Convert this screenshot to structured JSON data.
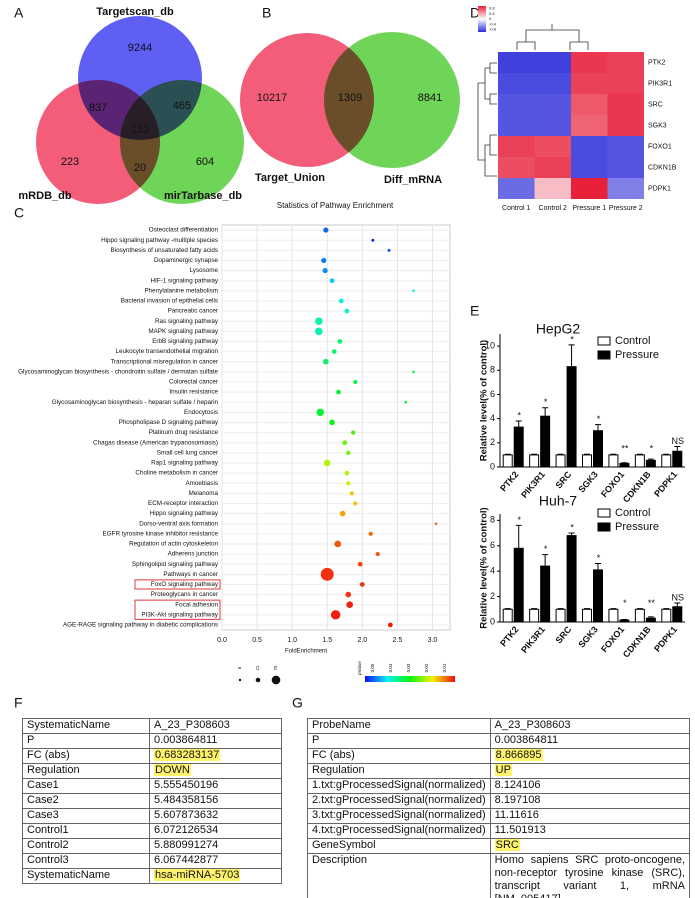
{
  "panel_labels": [
    "A",
    "B",
    "C",
    "D",
    "E",
    "F",
    "G"
  ],
  "chart_data": [
    {
      "type": "venn",
      "sets": [
        {
          "name": "Targetscan_db",
          "color": "#3c3cf2"
        },
        {
          "name": "mRDB_db",
          "color": "#f0395b"
        },
        {
          "name": "mirTarbase_db",
          "color": "#4fcc33"
        }
      ],
      "regions": [
        9244,
        837,
        465,
        133,
        223,
        20,
        604
      ]
    },
    {
      "type": "venn",
      "sets": [
        {
          "name": "Target_Union",
          "color": "#f0395b"
        },
        {
          "name": "Diff_mRNA",
          "color": "#4fcc33"
        }
      ],
      "regions": [
        10217,
        1309,
        8841
      ]
    },
    {
      "type": "dot",
      "title": "Statistics of Pathway Enrichment",
      "x_label": "FoldEnrichment",
      "categories": [
        "Osteoclast differentiation",
        "Hippo signaling pathway -multiple species",
        "Biosynthesis of unsaturated fatty acids",
        "Dopaminergic synapse",
        "Lysosome",
        "HIF-1 signaling pathway",
        "Phenylalanine metabolism",
        "Bacterial invasion of epithelial cells",
        "Pancreatic cancer",
        "Ras signaling pathway",
        "MAPK signaling pathway",
        "ErbB signaling pathway",
        "Leukocyte transendothelial migration",
        "Transcriptional misregulation in cancer",
        "Glycosaminoglycan biosynthesis - chondroitin sulfate / dermatan sulfate",
        "Colorectal cancer",
        "Insulin resistance",
        "Glycosaminoglycan biosynthesis - heparan sulfate / heparin",
        "Endocytosis",
        "Phospholipase D signaling pathway",
        "Platinum drug resistance",
        "Chagas disease (American trypanosomiasis)",
        "Small cell lung cancer",
        "Rap1 signaling pathway",
        "Choline metabolism in cancer",
        "Amoebiasis",
        "Melanoma",
        "ECM-receptor interaction",
        "Hippo signaling pathway",
        "Dorso-ventral axis formation",
        "EGFR tyrosine kinase inhibitor resistance",
        "Regulation of actin cytoskeleton",
        "Adherens junction",
        "Sphingolipid signaling pathway",
        "Pathways in cancer",
        "FoxO signaling pathway",
        "Proteoglycans in cancer",
        "Focal adhesion",
        "PI3K-Akt signaling pathway",
        "AGE-RAGE signaling pathway in diabetic complications"
      ],
      "values": [
        1.48,
        2.15,
        2.38,
        1.45,
        1.47,
        1.57,
        2.73,
        1.7,
        1.78,
        1.38,
        1.38,
        1.68,
        1.6,
        1.48,
        2.73,
        1.9,
        1.66,
        2.62,
        1.4,
        1.57,
        1.87,
        1.75,
        1.8,
        1.5,
        1.78,
        1.8,
        1.85,
        1.9,
        1.72,
        3.05,
        2.12,
        1.65,
        2.22,
        1.97,
        1.5,
        2.0,
        1.8,
        1.82,
        1.62,
        2.4
      ],
      "pvalues": [
        0.045,
        0.048,
        0.046,
        0.044,
        0.043,
        0.04,
        0.036,
        0.036,
        0.035,
        0.033,
        0.034,
        0.03,
        0.03,
        0.03,
        0.03,
        0.028,
        0.027,
        0.027,
        0.027,
        0.026,
        0.022,
        0.02,
        0.02,
        0.016,
        0.016,
        0.015,
        0.01,
        0.01,
        0.008,
        0.005,
        0.005,
        0.004,
        0.004,
        0.003,
        0.002,
        0.002,
        0.002,
        0.001,
        0.001,
        0.001
      ],
      "sizes": [
        12,
        4,
        4,
        12,
        12,
        10,
        3,
        10,
        10,
        25,
        25,
        10,
        10,
        14,
        3,
        8,
        10,
        3,
        25,
        14,
        8,
        10,
        8,
        20,
        10,
        8,
        8,
        8,
        14,
        3,
        8,
        20,
        8,
        10,
        75,
        10,
        14,
        20,
        40,
        10
      ],
      "xlim": [
        0,
        3.25
      ],
      "xticks": [
        {
          "value": 0,
          "label": "0.0"
        },
        0.5,
        {
          "value": 1,
          "label": "1.0"
        },
        1.5,
        {
          "value": 2,
          "label": "2.0"
        },
        2.5,
        {
          "value": 3,
          "label": "3.0"
        }
      ],
      "size_legend": [
        6,
        21,
        75
      ],
      "color_legend_title": "pValue",
      "color_ticks": [
        0.05,
        0.04,
        0.03,
        0.02,
        0.01
      ],
      "highlight_groups": [
        [
          35
        ],
        [
          37,
          38
        ]
      ],
      "highlight_color": "#e0393e",
      "grid": true
    },
    {
      "type": "heatmap",
      "rows": [
        "PTK2",
        "PIK3R1",
        "SRC",
        "SGK3",
        "FOXO1",
        "CDKN1B",
        "PDPK1"
      ],
      "columns": [
        "Control 1",
        "Control 2",
        "Pressure 1",
        "Pressure 2"
      ],
      "values": [
        [
          -0.9,
          -0.9,
          0.9,
          0.85
        ],
        [
          -0.85,
          -0.85,
          0.85,
          0.85
        ],
        [
          -0.8,
          -0.8,
          0.75,
          0.9
        ],
        [
          -0.8,
          -0.8,
          0.7,
          0.9
        ],
        [
          0.85,
          0.8,
          -0.85,
          -0.8
        ],
        [
          0.8,
          0.85,
          -0.85,
          -0.8
        ],
        [
          -0.7,
          0.3,
          1.0,
          -0.6
        ]
      ],
      "zlim": [
        -1,
        1
      ],
      "zticks": [
        0.8,
        0.4,
        0,
        -0.4,
        -0.8
      ],
      "low_color": "#2b2bd9",
      "mid_color": "#ffffff",
      "high_color": "#e8203a"
    },
    {
      "type": "bar",
      "title": "HepG2",
      "y_label": "Relative level(% of control)",
      "categories": [
        "PTK2",
        "PIK3R1",
        "SRC",
        "SGK3",
        "FOXO1",
        "CDKN1B",
        "PDPK1"
      ],
      "series": [
        {
          "name": "Control",
          "color": "#ffffff",
          "values": [
            1,
            1,
            1,
            1,
            1,
            1,
            1
          ],
          "errors": [
            0.05,
            0.05,
            0.05,
            0.05,
            0.05,
            0.05,
            0.05
          ]
        },
        {
          "name": "Pressure",
          "color": "#000000",
          "values": [
            3.3,
            4.2,
            8.3,
            3.0,
            0.3,
            0.55,
            1.3
          ],
          "errors": [
            0.5,
            0.7,
            1.8,
            0.5,
            0.05,
            0.1,
            0.4
          ]
        }
      ],
      "annotations": [
        "*",
        "*",
        "*",
        "*",
        "**",
        "*",
        "NS"
      ],
      "ylim": [
        0,
        11
      ],
      "yticks": [
        0,
        2,
        4,
        6,
        8,
        10
      ]
    },
    {
      "type": "bar",
      "title": "Huh-7",
      "y_label": "Relative level(% of control)",
      "categories": [
        "PTK2",
        "PIK3R1",
        "SRC",
        "SGK3",
        "FOXO1",
        "CDKN1B",
        "PDPK1"
      ],
      "series": [
        {
          "name": "Control",
          "color": "#ffffff",
          "values": [
            1,
            1,
            1,
            1,
            1,
            1,
            1
          ],
          "errors": [
            0.05,
            0.05,
            0.05,
            0.05,
            0.05,
            0.05,
            0.05
          ]
        },
        {
          "name": "Pressure",
          "color": "#000000",
          "values": [
            5.8,
            4.4,
            6.8,
            4.1,
            0.15,
            0.3,
            1.2
          ],
          "errors": [
            1.8,
            0.9,
            0.2,
            0.5,
            0.05,
            0.1,
            0.3
          ]
        }
      ],
      "annotations": [
        "*",
        "*",
        "*",
        "*",
        "*",
        "**",
        "NS"
      ],
      "ylim": [
        0,
        8.5
      ],
      "yticks": [
        0,
        2,
        4,
        6,
        8
      ]
    }
  ],
  "tables": [
    {
      "rows": [
        [
          "SystematicName",
          "A_23_P308603"
        ],
        [
          "P",
          "0.003864811"
        ],
        [
          "FC (abs)",
          "0.683283137"
        ],
        [
          "Regulation",
          "DOWN"
        ],
        [
          "Case1",
          "5.555450196"
        ],
        [
          "Case2",
          "5.484358156"
        ],
        [
          "Case3",
          "5.607873632"
        ],
        [
          "Control1",
          "6.072126534"
        ],
        [
          "Control2",
          "5.880991274"
        ],
        [
          "Control3",
          "6.067442877"
        ],
        [
          "SystematicName",
          "hsa-miRNA-5703"
        ]
      ],
      "highlight_rows": [
        2,
        3,
        10
      ],
      "highlight_color": "#fff36b"
    },
    {
      "rows": [
        [
          "ProbeName",
          "A_23_P308603"
        ],
        [
          "P",
          "0.003864811"
        ],
        [
          "FC (abs)",
          "8.866895"
        ],
        [
          "Regulation",
          "UP"
        ],
        [
          "1.txt:gProcessedSignal(normalized)",
          "8.124106"
        ],
        [
          "2.txt:gProcessedSignal(normalized)",
          "8.197108"
        ],
        [
          "3.txt:gProcessedSignal(normalized)",
          "11.11616"
        ],
        [
          "4.txt:gProcessedSignal(normalized)",
          "11.501913"
        ],
        [
          "GeneSymbol",
          "SRC"
        ],
        [
          "Description",
          "Homo sapiens SRC proto-oncogene, non-receptor tyrosine kinase (SRC), transcript variant 1, mRNA [NM_005417]"
        ]
      ],
      "highlight_rows": [
        2,
        3,
        8
      ],
      "highlight_color": "#fff36b"
    }
  ]
}
